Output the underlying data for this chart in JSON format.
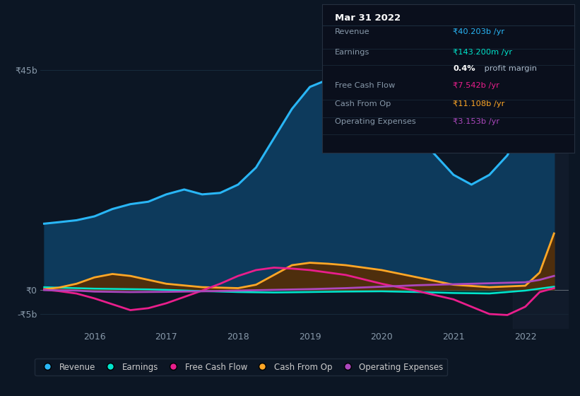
{
  "bg_color": "#0c1624",
  "plot_bg_color": "#0c1624",
  "highlight_bg_color": "#162030",
  "ylim": [
    -8,
    52
  ],
  "xlim": [
    2015.25,
    2022.6
  ],
  "ytick_vals": [
    45,
    0,
    -5
  ],
  "ytick_labels": [
    "₹45b",
    "₹0",
    "-₹5b"
  ],
  "xticks": [
    2016,
    2017,
    2018,
    2019,
    2020,
    2021,
    2022
  ],
  "highlight_start": 2021.83,
  "revenue": {
    "x": [
      2015.3,
      2015.5,
      2015.75,
      2016.0,
      2016.25,
      2016.5,
      2016.75,
      2017.0,
      2017.25,
      2017.5,
      2017.75,
      2018.0,
      2018.25,
      2018.5,
      2018.75,
      2019.0,
      2019.25,
      2019.5,
      2019.75,
      2020.0,
      2020.25,
      2020.5,
      2020.75,
      2021.0,
      2021.25,
      2021.5,
      2021.75,
      2022.0,
      2022.25,
      2022.4
    ],
    "y": [
      13.5,
      13.8,
      14.2,
      15.0,
      16.5,
      17.5,
      18.0,
      19.5,
      20.5,
      19.5,
      19.8,
      21.5,
      25.0,
      31.0,
      37.0,
      41.5,
      43.0,
      42.0,
      39.5,
      37.5,
      34.5,
      31.5,
      27.5,
      23.5,
      21.5,
      23.5,
      27.5,
      35.0,
      42.0,
      44.5
    ],
    "line_color": "#29b6f6",
    "fill_color": "#0d3a5c",
    "linewidth": 2.2
  },
  "earnings": {
    "x": [
      2015.3,
      2015.5,
      2015.75,
      2016.0,
      2016.25,
      2016.5,
      2016.75,
      2017.0,
      2017.5,
      2018.0,
      2018.5,
      2019.0,
      2019.5,
      2020.0,
      2020.5,
      2021.0,
      2021.5,
      2022.0,
      2022.4
    ],
    "y": [
      0.5,
      0.4,
      0.3,
      0.2,
      0.15,
      0.1,
      0.05,
      -0.05,
      -0.3,
      -0.5,
      -0.6,
      -0.5,
      -0.4,
      -0.35,
      -0.5,
      -0.7,
      -0.8,
      -0.2,
      0.6
    ],
    "line_color": "#00e5cc",
    "fill_color": "#004d45",
    "linewidth": 1.8
  },
  "free_cash_flow": {
    "x": [
      2015.3,
      2015.5,
      2015.75,
      2016.0,
      2016.25,
      2016.5,
      2016.75,
      2017.0,
      2017.25,
      2017.5,
      2017.75,
      2018.0,
      2018.25,
      2018.5,
      2018.75,
      2019.0,
      2019.5,
      2020.0,
      2020.5,
      2021.0,
      2021.25,
      2021.5,
      2021.75,
      2022.0,
      2022.2,
      2022.4
    ],
    "y": [
      0.0,
      -0.3,
      -0.8,
      -1.8,
      -3.0,
      -4.2,
      -3.8,
      -2.8,
      -1.5,
      -0.2,
      1.2,
      2.8,
      4.0,
      4.5,
      4.3,
      4.0,
      3.0,
      1.2,
      -0.3,
      -2.0,
      -3.5,
      -5.0,
      -5.2,
      -3.5,
      -0.5,
      0.3
    ],
    "line_color": "#e91e8c",
    "linewidth": 2.0
  },
  "cash_from_op": {
    "x": [
      2015.3,
      2015.5,
      2015.75,
      2016.0,
      2016.25,
      2016.5,
      2016.75,
      2017.0,
      2017.5,
      2018.0,
      2018.25,
      2018.5,
      2018.75,
      2019.0,
      2019.25,
      2019.5,
      2019.75,
      2020.0,
      2020.5,
      2021.0,
      2021.5,
      2022.0,
      2022.2,
      2022.4
    ],
    "y": [
      0.1,
      0.4,
      1.2,
      2.5,
      3.2,
      2.8,
      2.0,
      1.2,
      0.5,
      0.3,
      1.0,
      3.0,
      5.0,
      5.5,
      5.3,
      5.0,
      4.5,
      4.0,
      2.5,
      1.0,
      0.5,
      0.8,
      3.5,
      11.5
    ],
    "fill_color": "#5a2d00",
    "line_color": "#ffa726",
    "linewidth": 2.0
  },
  "operating_expenses": {
    "x": [
      2015.3,
      2015.75,
      2016.0,
      2016.5,
      2017.0,
      2017.5,
      2018.0,
      2018.5,
      2019.0,
      2019.5,
      2020.0,
      2020.5,
      2021.0,
      2021.5,
      2022.0,
      2022.2,
      2022.4
    ],
    "y": [
      -0.1,
      -0.2,
      -0.4,
      -0.5,
      -0.45,
      -0.35,
      -0.2,
      -0.05,
      0.1,
      0.3,
      0.6,
      0.9,
      1.1,
      1.3,
      1.5,
      2.0,
      2.8
    ],
    "line_color": "#ab47bc",
    "linewidth": 2.0
  },
  "legend_items": [
    {
      "label": "Revenue",
      "color": "#29b6f6"
    },
    {
      "label": "Earnings",
      "color": "#00e5cc"
    },
    {
      "label": "Free Cash Flow",
      "color": "#e91e8c"
    },
    {
      "label": "Cash From Op",
      "color": "#ffa726"
    },
    {
      "label": "Operating Expenses",
      "color": "#ab47bc"
    }
  ],
  "info_box": {
    "title": "Mar 31 2022",
    "title_color": "#ffffff",
    "bg_color": "#0a0f1c",
    "border_color": "#253040",
    "rows": [
      {
        "label": "Revenue",
        "value": "₹40.203b /yr",
        "value_color": "#29b6f6",
        "indent": false
      },
      {
        "label": "Earnings",
        "value": "₹143.200m /yr",
        "value_color": "#00e5cc",
        "indent": false
      },
      {
        "label": "",
        "value": "0.4% profit margin",
        "value_color": "#ffffff",
        "indent": true,
        "bold_pct": true
      },
      {
        "label": "Free Cash Flow",
        "value": "₹7.542b /yr",
        "value_color": "#e91e8c",
        "indent": false
      },
      {
        "label": "Cash From Op",
        "value": "₹11.108b /yr",
        "value_color": "#ffa726",
        "indent": false
      },
      {
        "label": "Operating Expenses",
        "value": "₹3.153b /yr",
        "value_color": "#ab47bc",
        "indent": false
      }
    ],
    "label_color": "#8899aa",
    "divider_color": "#1c2c3c"
  },
  "grid_color": "#1a2e40",
  "zero_line_color": "#cccccc",
  "tick_label_color": "#8899aa"
}
